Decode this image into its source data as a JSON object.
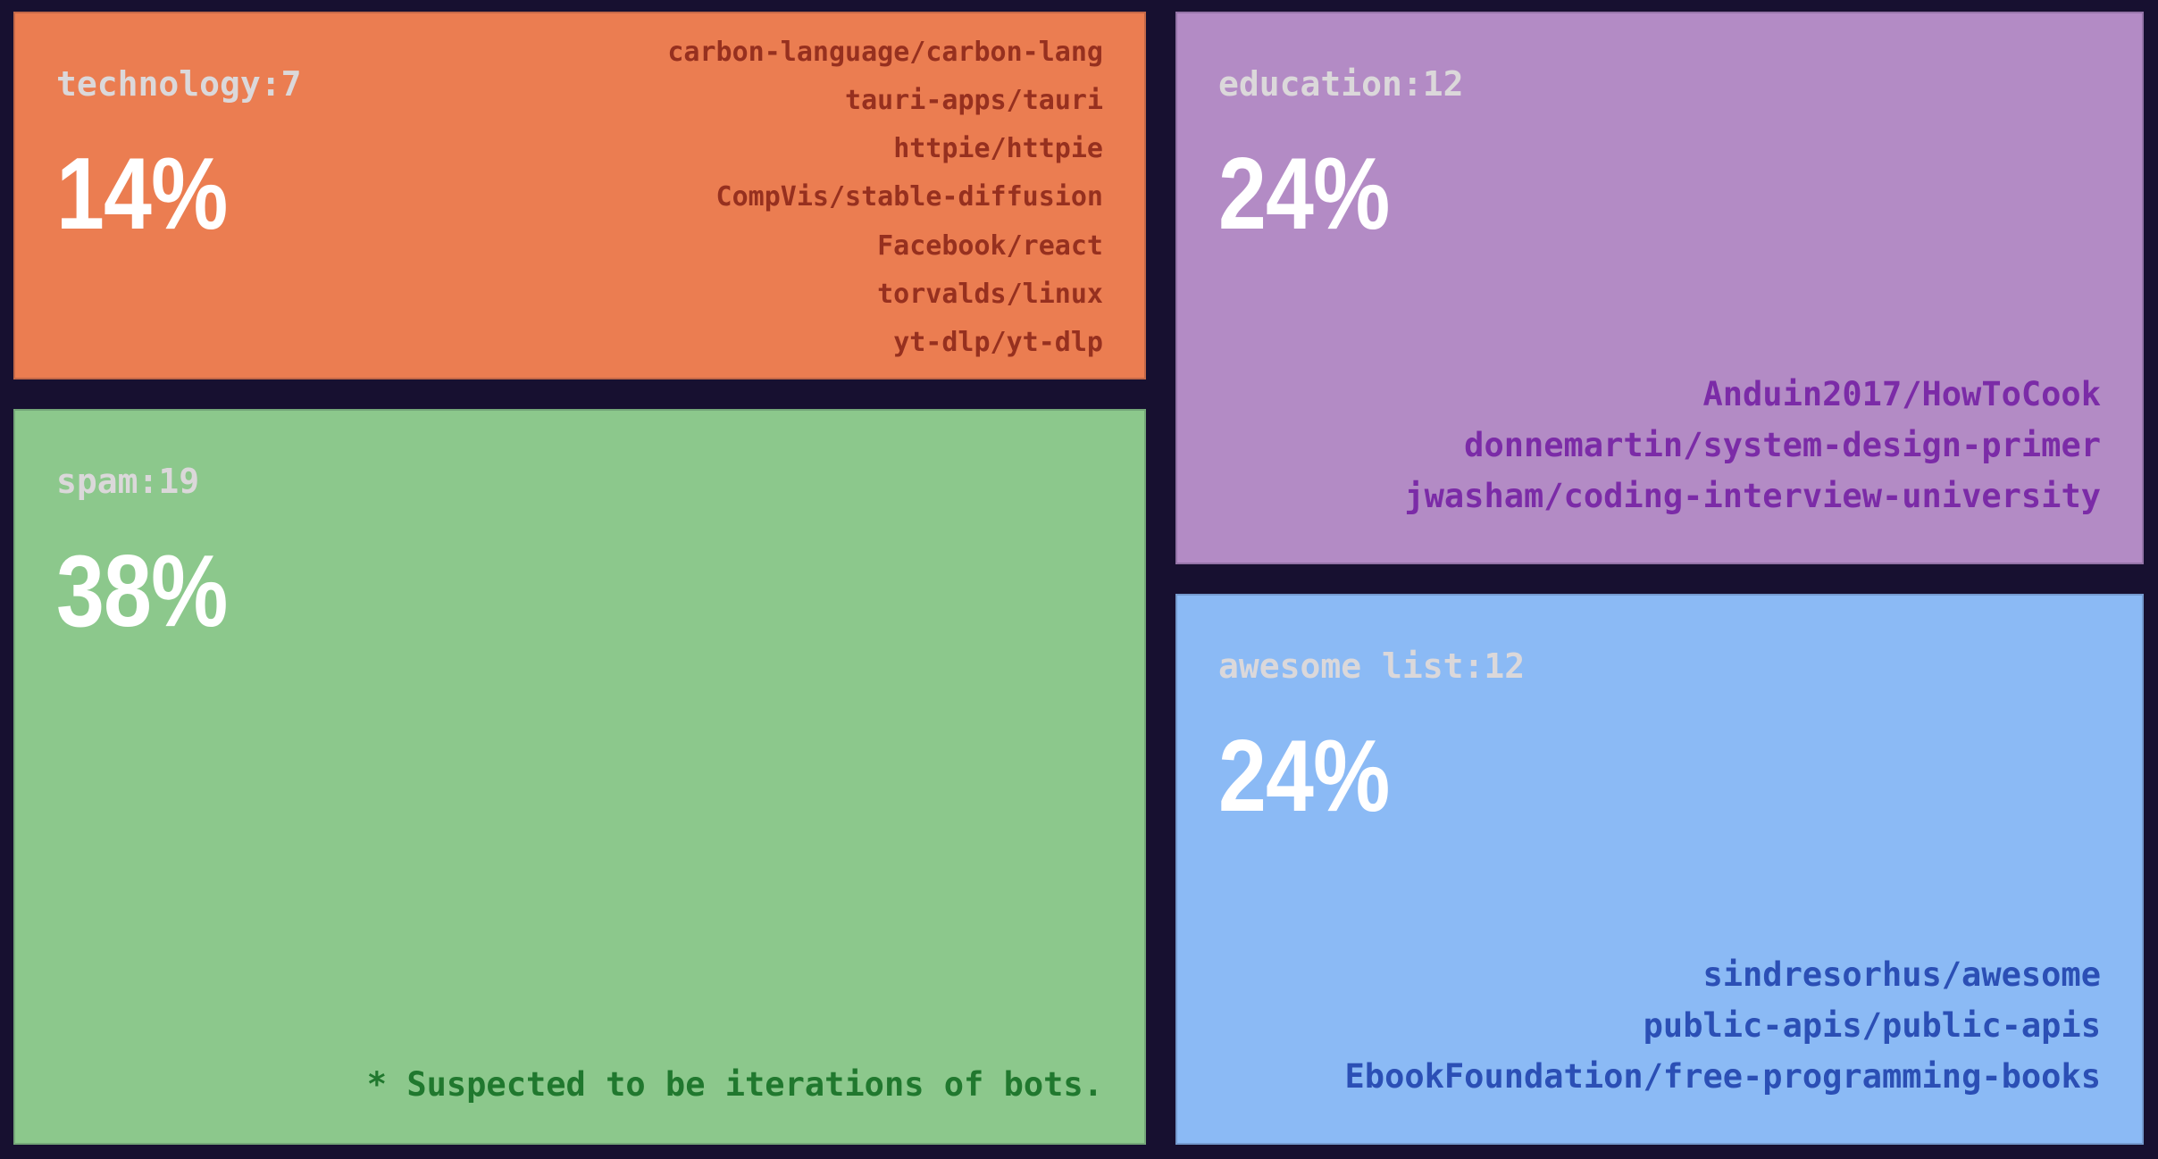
{
  "chart_data": {
    "type": "treemap",
    "layout": "two columns; left column: technology (top) + spam (bottom); right column: education (top) + awesome list (bottom); dark navy page background with gutters between tiles",
    "colors": {
      "background": "#171030",
      "category_label": "#DBD8DA",
      "percent_text": "#FFFFFF"
    },
    "series": [
      {
        "category": "technology",
        "count": 7,
        "percent": 14,
        "label": "technology:7",
        "percent_label": "14%",
        "tile_color": "#EB7D51",
        "accent_text_color": "#96301F",
        "repos": [
          "carbon-language/carbon-lang",
          "tauri-apps/tauri",
          "httpie/httpie",
          "CompVis/stable-diffusion",
          "Facebook/react",
          "torvalds/linux",
          "yt-dlp/yt-dlp"
        ]
      },
      {
        "category": "spam",
        "count": 19,
        "percent": 38,
        "label": "spam:19",
        "percent_label": "38%",
        "tile_color": "#8CC88C",
        "accent_text_color": "#20782E",
        "repos": [],
        "note": "* Suspected to be iterations of bots."
      },
      {
        "category": "education",
        "count": 12,
        "percent": 24,
        "label": "education:12",
        "percent_label": "24%",
        "tile_color": "#B38BC5",
        "accent_text_color": "#7B2BA7",
        "repos": [
          "Anduin2017/HowToCook",
          "donnemartin/system-design-primer",
          "jwasham/coding-interview-university"
        ]
      },
      {
        "category": "awesome list",
        "count": 12,
        "percent": 24,
        "label": "awesome list:12",
        "percent_label": "24%",
        "tile_color": "#8BBAF5",
        "accent_text_color": "#2B4FB5",
        "repos": [
          "sindresorhus/awesome",
          "public-apis/public-apis",
          "EbookFoundation/free-programming-books"
        ]
      }
    ]
  }
}
